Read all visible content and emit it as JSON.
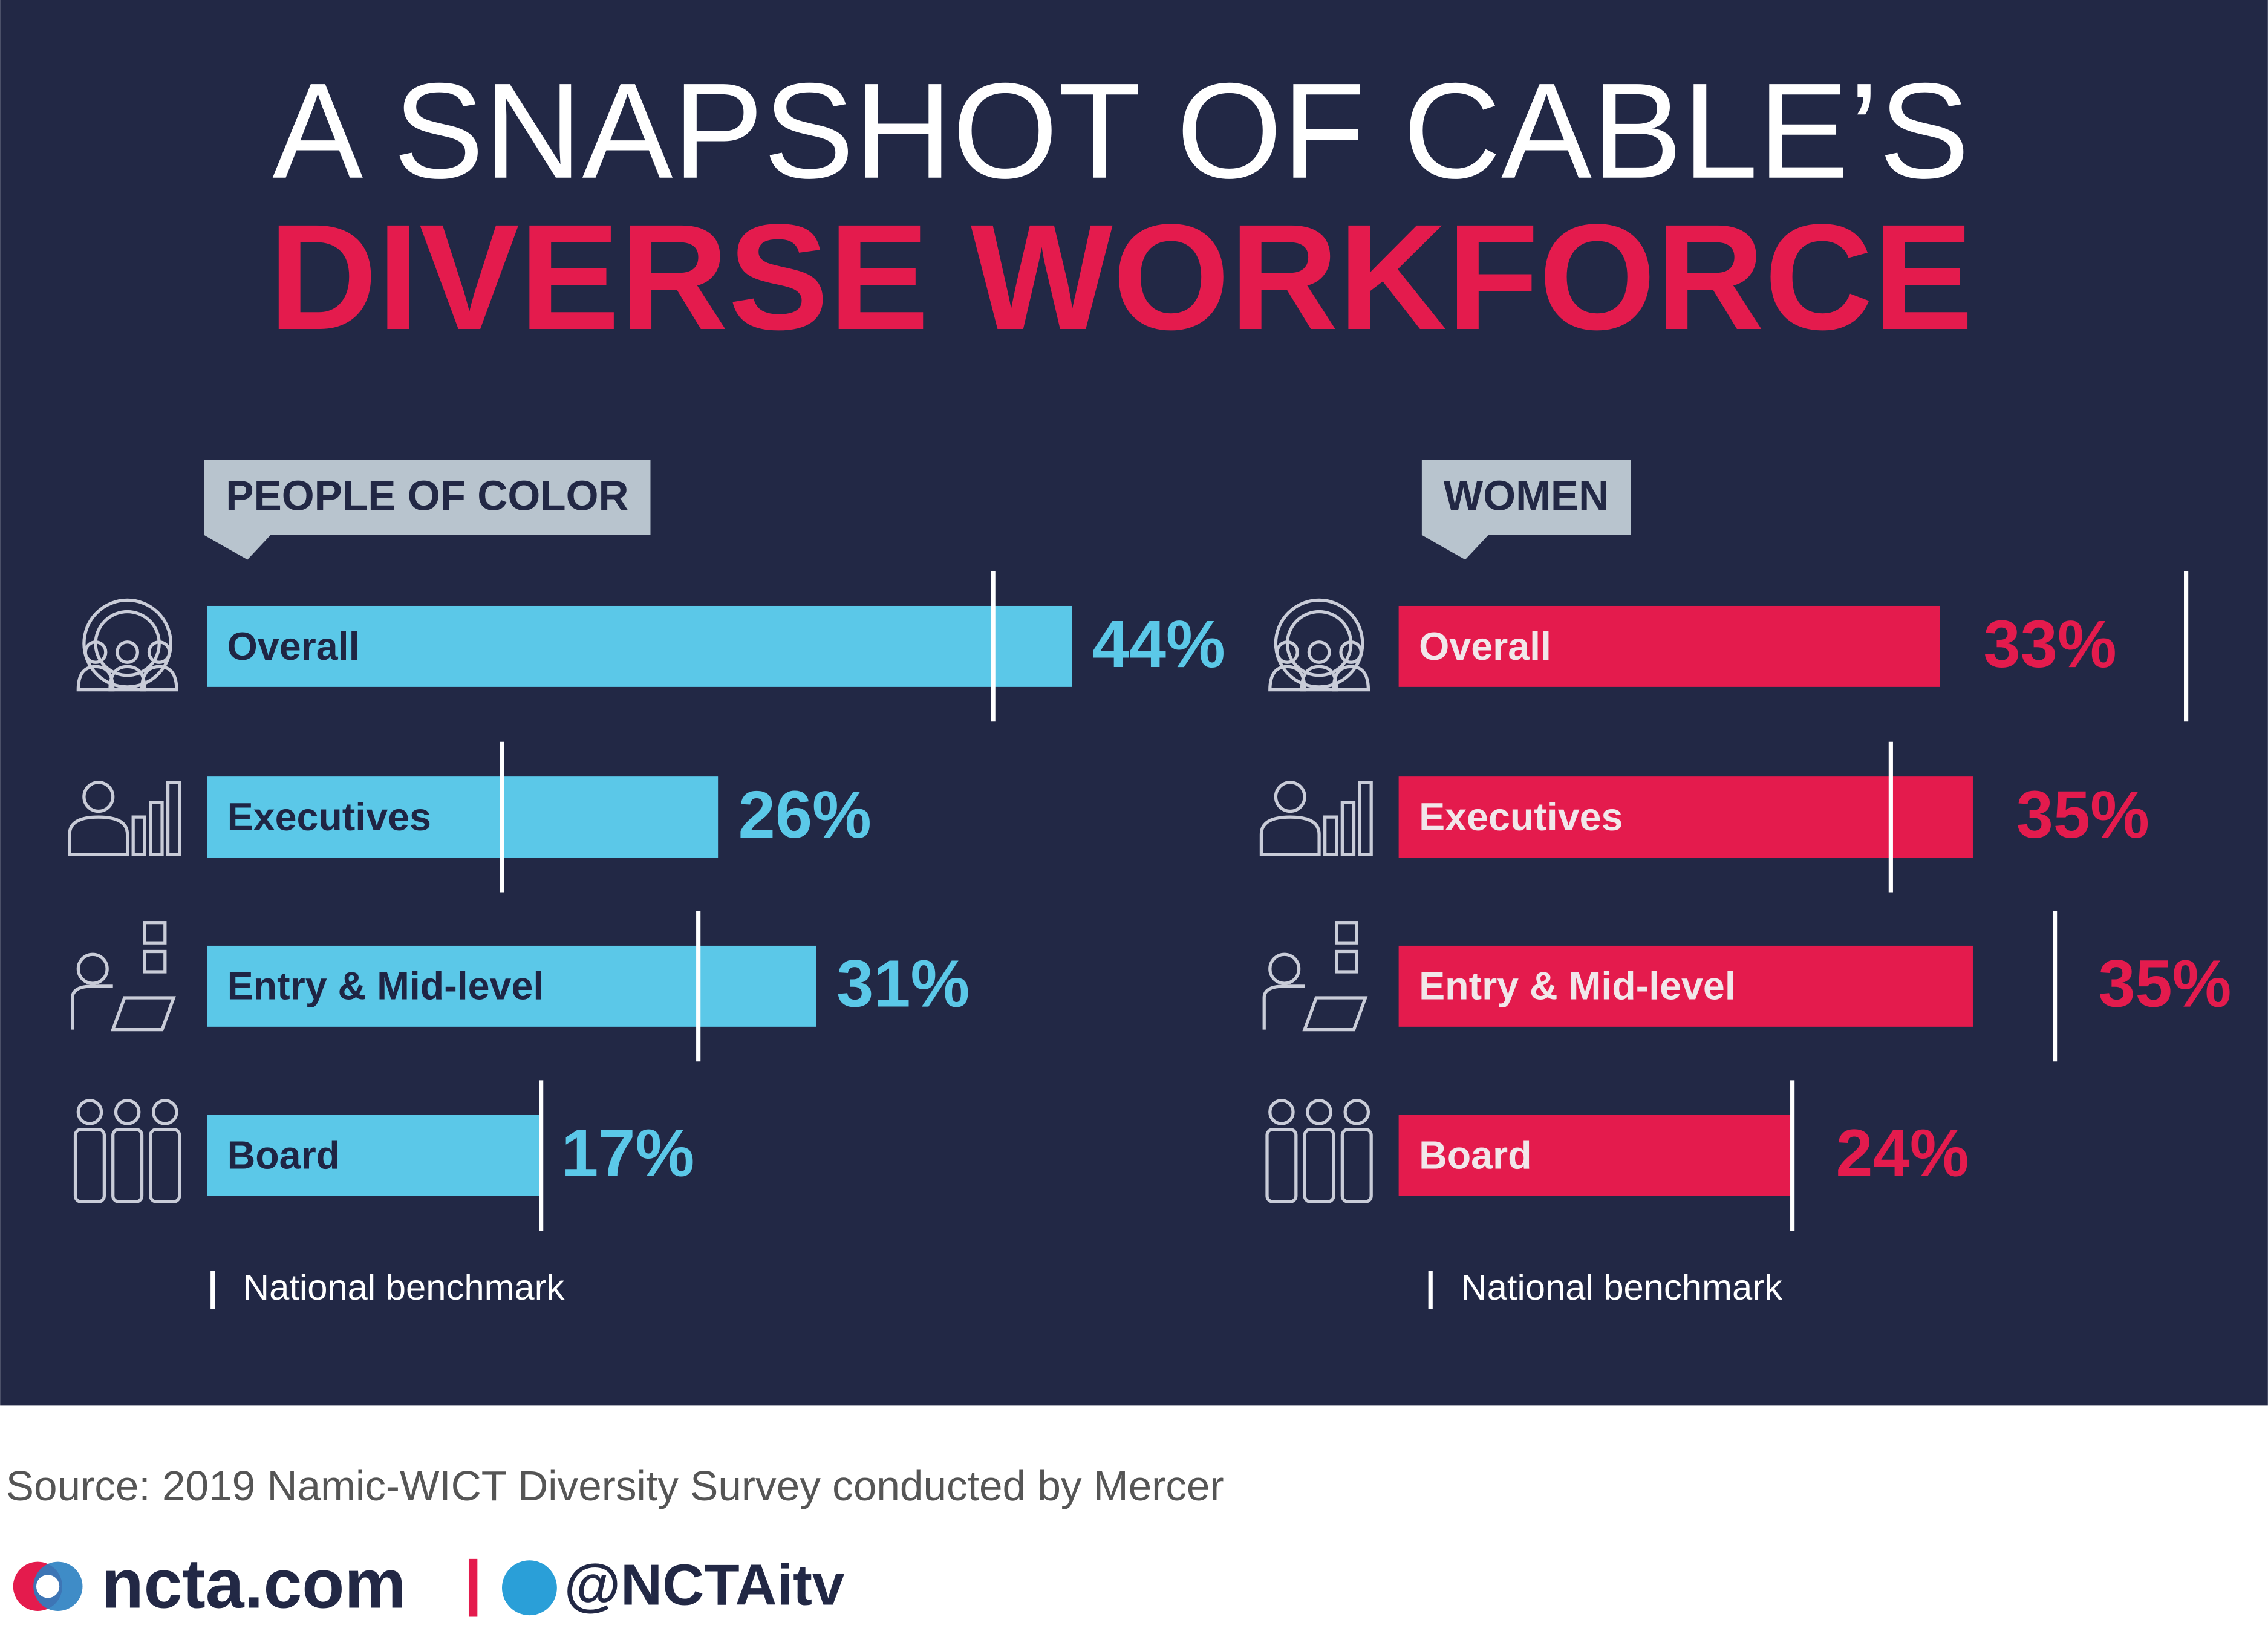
{
  "title_line1": "A SNAPSHOT OF CABLE’S",
  "title_line2": "DIVERSE WORKFORCE",
  "chart_data": [
    {
      "type": "bar",
      "title": "PEOPLE OF COLOR",
      "color": "#5bc8e8",
      "categories": [
        "Overall",
        "Executives",
        "Entry & Mid-level",
        "Board"
      ],
      "values": [
        44,
        26,
        31,
        17
      ],
      "value_labels": [
        "44%",
        "26%",
        "31%",
        "17%"
      ],
      "benchmarks": [
        40,
        15,
        25,
        17
      ],
      "benchmark_label": "National benchmark",
      "xlim": [
        0,
        50
      ]
    },
    {
      "type": "bar",
      "title": "WOMEN",
      "color": "#e41b4d",
      "categories": [
        "Overall",
        "Executives",
        "Entry & Mid-level",
        "Board"
      ],
      "values": [
        33,
        35,
        35,
        24
      ],
      "value_labels": [
        "33%",
        "35%",
        "35%",
        "24%"
      ],
      "benchmarks": [
        48,
        30,
        40,
        24
      ],
      "benchmark_label": "National benchmark",
      "xlim": [
        0,
        50
      ]
    }
  ],
  "source": {
    "label": "Source:",
    "text": "2019 Namic-WICT Diversity Survey conducted by Mercer"
  },
  "footer": {
    "site": "ncta.com",
    "handle": "@NCTAitv"
  }
}
